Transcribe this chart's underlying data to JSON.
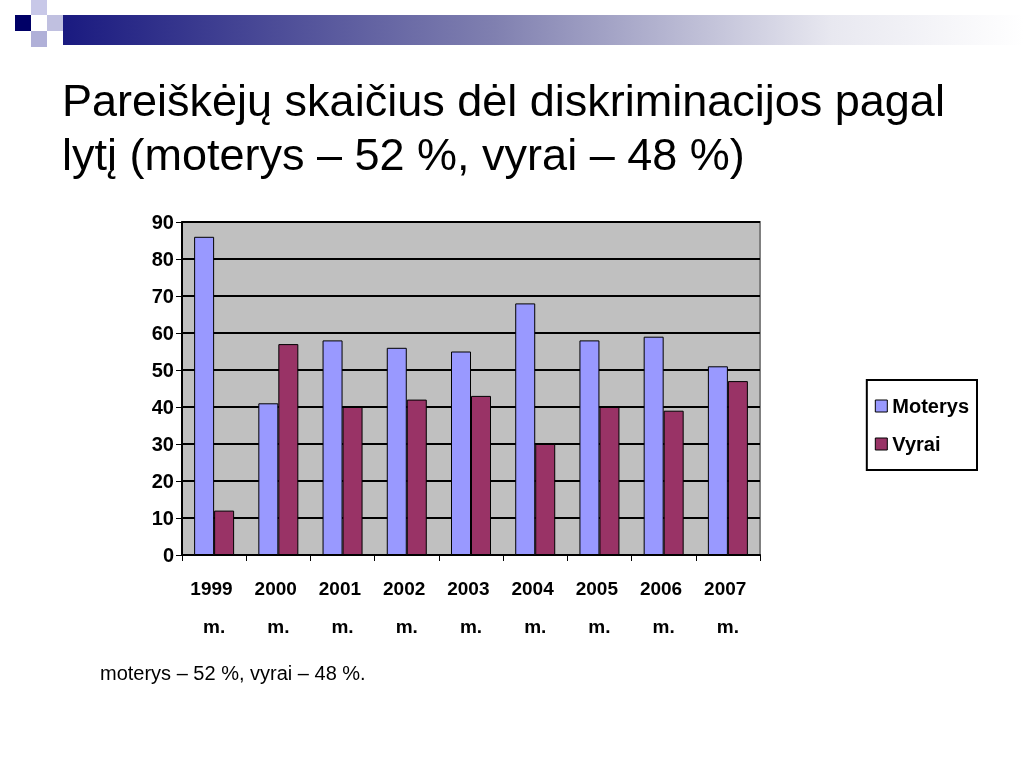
{
  "chart_data": {
    "type": "bar",
    "title": "Pareiškėjų skaičius dėl diskriminacijos pagal lytį (moterys – 52 %, vyrai – 48 %)",
    "categories": [
      "1999 m.",
      "2000 m.",
      "2001 m.",
      "2002 m.",
      "2003 m.",
      "2004 m.",
      "2005 m.",
      "2006 m.",
      "2007 m."
    ],
    "series": [
      {
        "name": "Moterys",
        "color": "#9999ff",
        "values": [
          86,
          41,
          58,
          56,
          55,
          68,
          58,
          59,
          51
        ]
      },
      {
        "name": "Vyrai",
        "color": "#993366",
        "values": [
          12,
          57,
          40,
          42,
          43,
          30,
          40,
          39,
          47
        ]
      }
    ],
    "ylim": [
      0,
      90
    ],
    "yticks": [
      0,
      10,
      20,
      30,
      40,
      50,
      60,
      70,
      80,
      90
    ],
    "grid": "y",
    "legend": "right",
    "annotations": [
      "moterys – 52 %, vyrai – 48 %."
    ]
  }
}
